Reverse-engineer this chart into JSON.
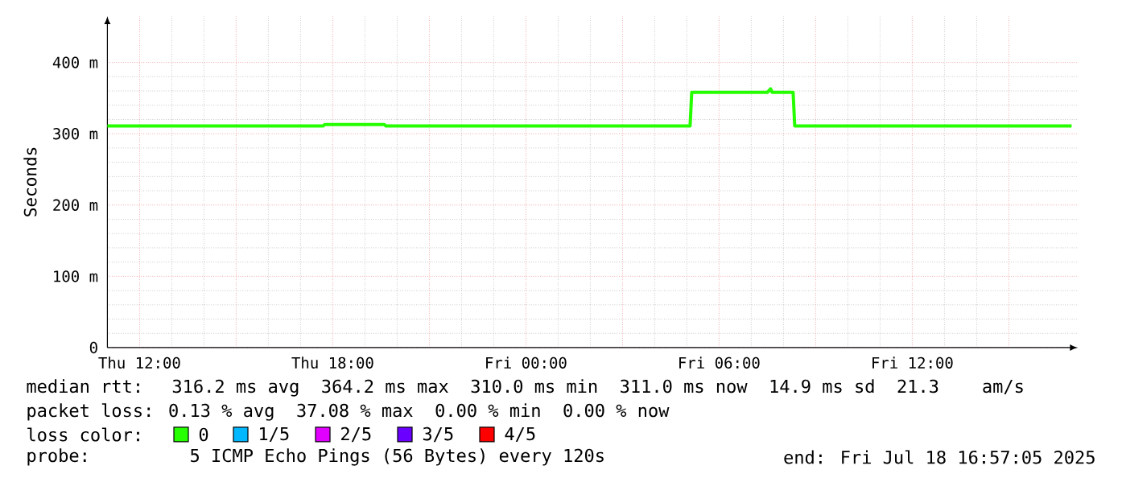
{
  "chart_data": {
    "type": "line",
    "ylabel": "Seconds",
    "legend_title": "loss color:",
    "legend": "bottom",
    "grid": true,
    "marker": "none",
    "line_style": "solid",
    "xlim": [
      "2025-07-17T11:00",
      "2025-07-18T17:09"
    ],
    "ylim": [
      0,
      465
    ],
    "xticks": [
      {
        "value": "2025-07-17T12:00",
        "label": "Thu 12:00"
      },
      {
        "value": "2025-07-17T15:00",
        "label": null
      },
      {
        "value": "2025-07-17T18:00",
        "label": "Thu 18:00"
      },
      {
        "value": "2025-07-17T21:00",
        "label": null
      },
      {
        "value": "2025-07-18T00:00",
        "label": "Fri 00:00"
      },
      {
        "value": "2025-07-18T03:00",
        "label": null
      },
      {
        "value": "2025-07-18T06:00",
        "label": "Fri 06:00"
      },
      {
        "value": "2025-07-18T09:00",
        "label": null
      },
      {
        "value": "2025-07-18T12:00",
        "label": "Fri 12:00"
      },
      {
        "value": "2025-07-18T15:00",
        "label": null
      }
    ],
    "yticks": [
      0,
      {
        "value": 100,
        "label": "100 m"
      },
      {
        "value": 200,
        "label": "200 m"
      },
      {
        "value": 300,
        "label": "300 m"
      },
      {
        "value": 400,
        "label": "400 m"
      }
    ],
    "series": [
      {
        "name": "0",
        "color": "#26ff00",
        "x": [
          "2025-07-17T11:00",
          "2025-07-17T17:42",
          "2025-07-17T17:45",
          "2025-07-17T19:36",
          "2025-07-17T19:39",
          "2025-07-18T05:06",
          "2025-07-18T05:09",
          "2025-07-18T07:30",
          "2025-07-18T07:36",
          "2025-07-18T07:39",
          "2025-07-18T08:18",
          "2025-07-18T08:21",
          "2025-07-18T16:57"
        ],
        "values": [
          311,
          311,
          313,
          313,
          311,
          311,
          358,
          358,
          363,
          358,
          358,
          311,
          311
        ]
      },
      {
        "name": "1/5",
        "color": "#00b8ff"
      },
      {
        "name": "2/5",
        "color": "#e100ff"
      },
      {
        "name": "3/5",
        "color": "#6a00ff"
      },
      {
        "name": "4/5",
        "color": "#ff0000"
      }
    ],
    "annotations": [
      "median rtt:  316.2 ms avg  364.2 ms max  310.0 ms min  311.0 ms now  14.9 ms sd  21.3    am/s",
      "packet loss: 0.13 % avg  37.08 % max  0.00 % min  0.00 % now",
      "probe:       5 ICMP Echo Pings (56 Bytes) every 120s",
      "end: Fri Jul 18 16:57:05 2025"
    ]
  }
}
